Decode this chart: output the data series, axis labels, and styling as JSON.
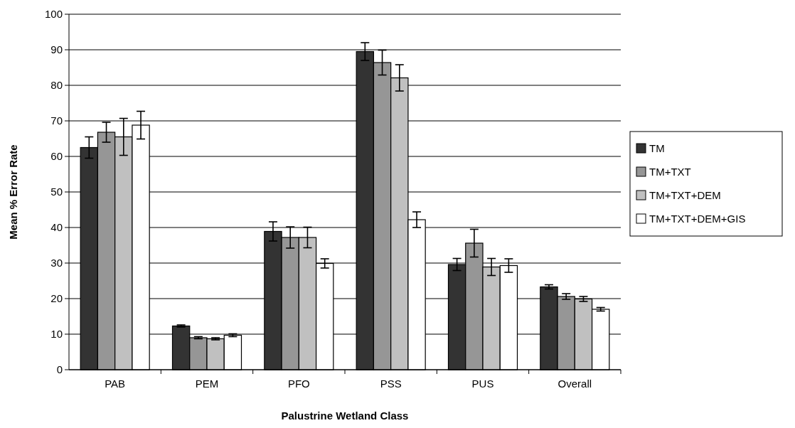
{
  "chart_data": {
    "type": "bar",
    "xlabel": "Palustrine Wetland Class",
    "ylabel": "Mean % Error Rate",
    "categories": [
      "PAB",
      "PEM",
      "PFO",
      "PSS",
      "PUS",
      "Overall"
    ],
    "series": [
      {
        "name": "TM",
        "color": "#333333",
        "values": [
          62.5,
          12.3,
          38.9,
          89.5,
          29.6,
          23.3
        ],
        "errors": [
          3,
          0.3,
          2.7,
          2.5,
          1.7,
          0.6
        ]
      },
      {
        "name": "TM+TXT",
        "color": "#969696",
        "values": [
          66.8,
          9.0,
          37.2,
          86.4,
          35.6,
          20.6
        ],
        "errors": [
          2.8,
          0.3,
          3,
          3.5,
          3.9,
          0.8
        ]
      },
      {
        "name": "TM+TXT+DEM",
        "color": "#c0c0c0",
        "values": [
          65.5,
          8.7,
          37.2,
          82.1,
          28.9,
          19.9
        ],
        "errors": [
          5.2,
          0.3,
          2.9,
          3.7,
          2.4,
          0.7
        ]
      },
      {
        "name": "TM+TXT+DEM+GIS",
        "color": "#ffffff",
        "values": [
          68.8,
          9.7,
          29.9,
          42.2,
          29.3,
          17.0
        ],
        "errors": [
          3.9,
          0.4,
          1.3,
          2.2,
          1.9,
          0.5
        ]
      }
    ],
    "ylim": [
      0,
      100
    ],
    "yticks": [
      0,
      10,
      20,
      30,
      40,
      50,
      60,
      70,
      80,
      90,
      100
    ],
    "grid": "y",
    "legend": "right"
  }
}
